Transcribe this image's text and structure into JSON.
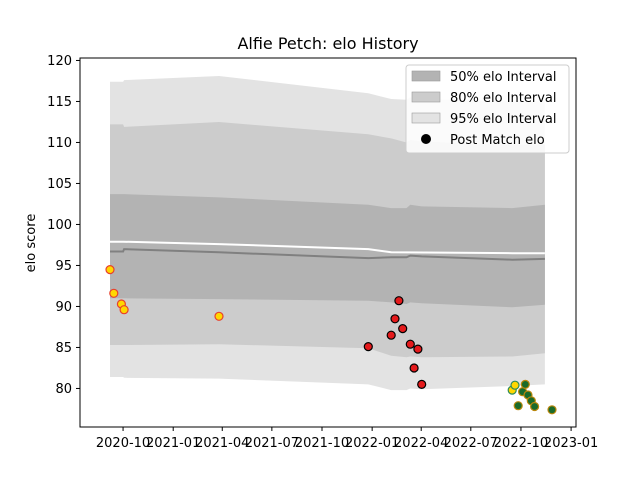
{
  "chart_data": {
    "type": "line",
    "title": "Alfie Petch: elo History",
    "xlabel": "",
    "ylabel": "elo score",
    "xlim": [
      "2020-07-14",
      "2023-01-10"
    ],
    "ylim": [
      75.3,
      120.3
    ],
    "grid": false,
    "legend_placement": "top-right",
    "y_ticks": [
      80,
      85,
      90,
      95,
      100,
      105,
      110,
      115,
      120
    ],
    "x_ticks": [
      {
        "date": "2020-10-01",
        "label": "2020-10"
      },
      {
        "date": "2021-01-01",
        "label": "2021-01"
      },
      {
        "date": "2021-04-01",
        "label": "2021-04"
      },
      {
        "date": "2021-07-01",
        "label": "2021-07"
      },
      {
        "date": "2021-10-01",
        "label": "2021-10"
      },
      {
        "date": "2022-01-01",
        "label": "2022-01"
      },
      {
        "date": "2022-04-01",
        "label": "2022-04"
      },
      {
        "date": "2022-07-01",
        "label": "2022-07"
      },
      {
        "date": "2022-10-01",
        "label": "2022-10"
      },
      {
        "date": "2023-01-01",
        "label": "2023-01"
      }
    ],
    "series": [
      {
        "name": "95% elo Interval",
        "kind": "band",
        "color": "#e3e3e3",
        "dates": [
          "2020-09-07",
          "2020-10-01",
          "2020-10-03",
          "2021-03-26",
          "2021-12-25",
          "2022-02-05",
          "2022-03-05",
          "2022-03-12",
          "2022-04-02",
          "2022-09-15",
          "2022-11-14"
        ],
        "upper": [
          117.4,
          117.4,
          117.6,
          118.1,
          116.0,
          115.3,
          115.2,
          115.5,
          115.3,
          115.0,
          115.0
        ],
        "lower": [
          81.4,
          81.4,
          81.3,
          81.2,
          80.5,
          79.8,
          79.8,
          80.0,
          79.9,
          80.3,
          80.5
        ]
      },
      {
        "name": "80% elo Interval",
        "kind": "band",
        "color": "#cccccc",
        "dates": [
          "2020-09-07",
          "2020-10-01",
          "2020-10-03",
          "2021-03-26",
          "2021-12-25",
          "2022-02-05",
          "2022-03-05",
          "2022-03-12",
          "2022-04-02",
          "2022-09-15",
          "2022-11-14"
        ],
        "upper": [
          112.2,
          112.2,
          111.9,
          112.5,
          111.0,
          110.5,
          110.0,
          110.3,
          110.1,
          109.7,
          109.7
        ],
        "lower": [
          85.3,
          85.3,
          85.3,
          85.4,
          84.9,
          84.0,
          83.8,
          83.9,
          83.8,
          83.9,
          84.3
        ]
      },
      {
        "name": "50% elo Interval",
        "kind": "band",
        "color": "#b3b3b3",
        "dates": [
          "2020-09-07",
          "2020-10-01",
          "2020-10-03",
          "2021-03-26",
          "2021-12-25",
          "2022-02-05",
          "2022-03-05",
          "2022-03-12",
          "2022-04-02",
          "2022-09-15",
          "2022-11-14"
        ],
        "upper": [
          103.7,
          103.7,
          103.7,
          103.3,
          102.4,
          102.0,
          102.0,
          102.4,
          102.2,
          102.0,
          102.4
        ],
        "lower": [
          91.0,
          91.0,
          91.0,
          90.9,
          90.7,
          90.5,
          90.3,
          90.5,
          90.4,
          89.9,
          90.2
        ]
      },
      {
        "kind": "line",
        "color": "#ffffff",
        "dates": [
          "2020-09-07",
          "2020-10-01",
          "2021-03-26",
          "2021-12-25",
          "2022-02-05",
          "2022-09-15",
          "2022-11-14"
        ],
        "values": [
          97.9,
          97.9,
          97.6,
          97.0,
          96.6,
          96.5,
          96.5
        ]
      },
      {
        "kind": "line",
        "color": "#808080",
        "dates": [
          "2020-09-07",
          "2020-10-01",
          "2020-10-03",
          "2021-03-26",
          "2021-12-25",
          "2022-02-05",
          "2022-03-05",
          "2022-03-12",
          "2022-04-02",
          "2022-09-15",
          "2022-11-14"
        ],
        "values": [
          96.7,
          96.7,
          97.0,
          96.6,
          95.9,
          96.0,
          96.0,
          96.2,
          96.1,
          95.7,
          95.8
        ]
      },
      {
        "name": "Post Match elo",
        "kind": "scatter",
        "points": [
          {
            "date": "2020-09-07",
            "elo": 94.5,
            "face": "#ffd700",
            "edge": "#e8402c"
          },
          {
            "date": "2020-09-14",
            "elo": 91.6,
            "face": "#ffd700",
            "edge": "#e8402c"
          },
          {
            "date": "2020-09-28",
            "elo": 90.3,
            "face": "#ffd700",
            "edge": "#e8402c"
          },
          {
            "date": "2020-10-03",
            "elo": 89.6,
            "face": "#ffd700",
            "edge": "#e8402c"
          },
          {
            "date": "2021-03-26",
            "elo": 88.8,
            "face": "#ffd700",
            "edge": "#e8402c"
          },
          {
            "date": "2021-12-25",
            "elo": 85.1,
            "face": "#e41a1c",
            "edge": "#000000"
          },
          {
            "date": "2022-02-05",
            "elo": 86.5,
            "face": "#e41a1c",
            "edge": "#000000"
          },
          {
            "date": "2022-02-12",
            "elo": 88.5,
            "face": "#e41a1c",
            "edge": "#000000"
          },
          {
            "date": "2022-02-19",
            "elo": 90.7,
            "face": "#e41a1c",
            "edge": "#000000"
          },
          {
            "date": "2022-02-26",
            "elo": 87.3,
            "face": "#e41a1c",
            "edge": "#000000"
          },
          {
            "date": "2022-03-12",
            "elo": 85.4,
            "face": "#e41a1c",
            "edge": "#000000"
          },
          {
            "date": "2022-03-19",
            "elo": 82.5,
            "face": "#e41a1c",
            "edge": "#000000"
          },
          {
            "date": "2022-03-26",
            "elo": 84.8,
            "face": "#e41a1c",
            "edge": "#000000"
          },
          {
            "date": "2022-04-02",
            "elo": 80.5,
            "face": "#e41a1c",
            "edge": "#000000"
          },
          {
            "date": "2022-09-15",
            "elo": 79.8,
            "face": "#ffd700",
            "edge": "#2e8b57"
          },
          {
            "date": "2022-09-20",
            "elo": 80.4,
            "face": "#ffd700",
            "edge": "#2e8b57"
          },
          {
            "date": "2022-09-26",
            "elo": 77.9,
            "face": "#1a6b2a",
            "edge": "#b8860b"
          },
          {
            "date": "2022-10-04",
            "elo": 79.6,
            "face": "#1a6b2a",
            "edge": "#b8860b"
          },
          {
            "date": "2022-10-09",
            "elo": 80.5,
            "face": "#1a6b2a",
            "edge": "#b8860b"
          },
          {
            "date": "2022-10-14",
            "elo": 79.2,
            "face": "#1a6b2a",
            "edge": "#b8860b"
          },
          {
            "date": "2022-10-20",
            "elo": 78.5,
            "face": "#1a6b2a",
            "edge": "#b8860b"
          },
          {
            "date": "2022-10-26",
            "elo": 77.8,
            "face": "#1a6b2a",
            "edge": "#b8860b"
          },
          {
            "date": "2022-11-27",
            "elo": 77.4,
            "face": "#1a6b2a",
            "edge": "#b8860b"
          }
        ]
      }
    ],
    "legend": [
      {
        "label": "50% elo Interval",
        "color": "#b3b3b3",
        "marker": "patch"
      },
      {
        "label": "80% elo Interval",
        "color": "#cccccc",
        "marker": "patch"
      },
      {
        "label": "95% elo Interval",
        "color": "#e3e3e3",
        "marker": "patch"
      },
      {
        "label": "Post Match elo",
        "color": "#000000",
        "marker": "dot"
      }
    ]
  }
}
